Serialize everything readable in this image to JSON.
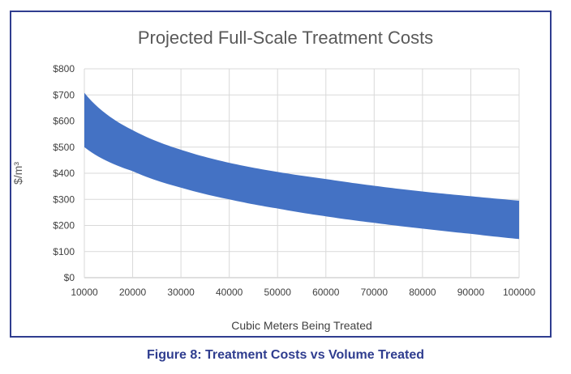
{
  "chart_data": {
    "type": "area",
    "title": "Projected Full-Scale Treatment Costs",
    "xlabel": "Cubic Meters Being Treated",
    "ylabel": "$/m³",
    "xlim": [
      10000,
      100000
    ],
    "ylim": [
      0,
      800
    ],
    "x_ticks": [
      "10000",
      "20000",
      "30000",
      "40000",
      "50000",
      "60000",
      "70000",
      "80000",
      "90000",
      "100000"
    ],
    "y_ticks": [
      "$0",
      "$100",
      "$200",
      "$300",
      "$400",
      "$500",
      "$600",
      "$700",
      "$800"
    ],
    "grid": true,
    "fill_color": "#4472c4",
    "x": [
      10000,
      20000,
      30000,
      40000,
      50000,
      60000,
      70000,
      80000,
      90000,
      100000
    ],
    "series": [
      {
        "values": [
          500,
          408,
          345,
          300,
          265,
          235,
          210,
          188,
          168,
          148
        ]
      },
      {
        "values": [
          708,
          565,
          490,
          440,
          405,
          378,
          352,
          330,
          312,
          295
        ]
      }
    ]
  },
  "caption": "Figure 8:  Treatment Costs vs Volume Treated"
}
